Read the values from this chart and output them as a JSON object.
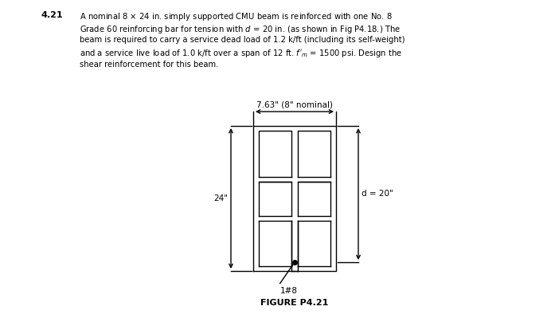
{
  "title_number": "4.21",
  "figure_label": "FIGURE P4.21",
  "width_label": "7.63\" (8\" nominal)",
  "dim_24": "24\"",
  "dim_d20": "d = 20\"",
  "bar_label": "1#8",
  "bg_color": "#ffffff",
  "line_color": "#000000",
  "lw": 1.0,
  "problem_lines": [
    "A nominal 8 \\times 24 in. simply supported CMU beam is reinforced with one No. 8",
    "Grade 60 reinforcing bar for tension with d = 20 in. (as shown in Fig P4.18.) The",
    "beam is required to carry a service dead load of 1.2 k/ft (including its self-weight)",
    "and a service live load of 1.0 k/ft over a span of 12 ft. f_m = 1500 psi. Design the",
    "shear reinforcement for this beam."
  ]
}
